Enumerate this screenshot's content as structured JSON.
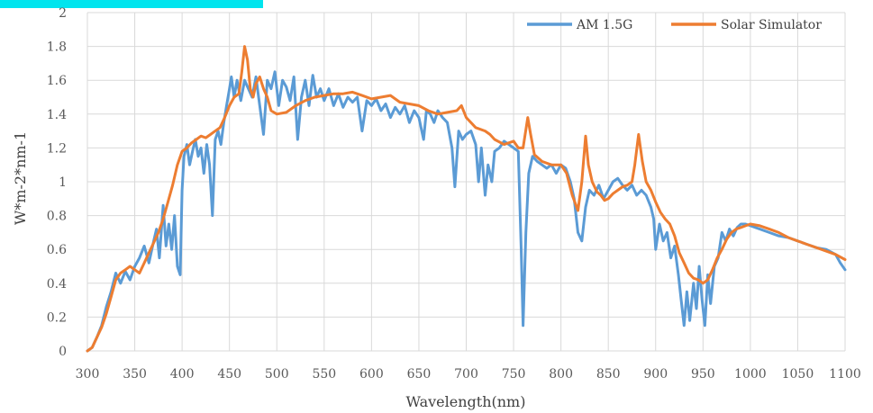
{
  "chart_data": {
    "type": "line",
    "title": "",
    "xlabel": "Wavelength(nm)",
    "ylabel": "W*m-2*nm-1",
    "xlim": [
      300,
      1100
    ],
    "ylim": [
      0,
      2
    ],
    "x_ticks": [
      300,
      350,
      400,
      450,
      500,
      550,
      600,
      650,
      700,
      750,
      800,
      850,
      900,
      950,
      1000,
      1050,
      1100
    ],
    "y_ticks": [
      0,
      0.2,
      0.4,
      0.6,
      0.8,
      1,
      1.2,
      1.4,
      1.6,
      1.8,
      2
    ],
    "y_tick_labels": [
      "0",
      "0.2",
      "0.4",
      "0.6",
      "0.8",
      "1",
      "1.2",
      "1.4",
      "1.6",
      "1.8",
      "2"
    ],
    "grid": true,
    "legend_position": "top-right",
    "series": [
      {
        "name": "AM 1.5G",
        "color": "#5b9bd5",
        "points": [
          [
            300,
            0
          ],
          [
            305,
            0.02
          ],
          [
            310,
            0.08
          ],
          [
            315,
            0.15
          ],
          [
            320,
            0.26
          ],
          [
            325,
            0.35
          ],
          [
            330,
            0.46
          ],
          [
            335,
            0.4
          ],
          [
            340,
            0.47
          ],
          [
            345,
            0.42
          ],
          [
            350,
            0.5
          ],
          [
            355,
            0.55
          ],
          [
            360,
            0.62
          ],
          [
            365,
            0.52
          ],
          [
            370,
            0.65
          ],
          [
            373,
            0.72
          ],
          [
            376,
            0.55
          ],
          [
            380,
            0.86
          ],
          [
            383,
            0.62
          ],
          [
            386,
            0.75
          ],
          [
            389,
            0.6
          ],
          [
            392,
            0.8
          ],
          [
            395,
            0.5
          ],
          [
            398,
            0.45
          ],
          [
            400,
            0.95
          ],
          [
            402,
            1.15
          ],
          [
            405,
            1.22
          ],
          [
            408,
            1.1
          ],
          [
            411,
            1.18
          ],
          [
            414,
            1.25
          ],
          [
            417,
            1.15
          ],
          [
            420,
            1.2
          ],
          [
            423,
            1.05
          ],
          [
            426,
            1.22
          ],
          [
            429,
            1.1
          ],
          [
            432,
            0.8
          ],
          [
            435,
            1.25
          ],
          [
            438,
            1.3
          ],
          [
            441,
            1.22
          ],
          [
            444,
            1.35
          ],
          [
            447,
            1.45
          ],
          [
            450,
            1.55
          ],
          [
            452,
            1.62
          ],
          [
            455,
            1.5
          ],
          [
            458,
            1.6
          ],
          [
            462,
            1.48
          ],
          [
            466,
            1.6
          ],
          [
            470,
            1.55
          ],
          [
            474,
            1.5
          ],
          [
            478,
            1.62
          ],
          [
            482,
            1.45
          ],
          [
            486,
            1.28
          ],
          [
            490,
            1.6
          ],
          [
            494,
            1.55
          ],
          [
            498,
            1.65
          ],
          [
            502,
            1.45
          ],
          [
            506,
            1.6
          ],
          [
            510,
            1.56
          ],
          [
            514,
            1.48
          ],
          [
            518,
            1.62
          ],
          [
            522,
            1.25
          ],
          [
            526,
            1.5
          ],
          [
            530,
            1.6
          ],
          [
            534,
            1.45
          ],
          [
            538,
            1.63
          ],
          [
            542,
            1.5
          ],
          [
            546,
            1.55
          ],
          [
            550,
            1.48
          ],
          [
            555,
            1.55
          ],
          [
            560,
            1.45
          ],
          [
            565,
            1.52
          ],
          [
            570,
            1.44
          ],
          [
            575,
            1.5
          ],
          [
            580,
            1.47
          ],
          [
            585,
            1.5
          ],
          [
            590,
            1.3
          ],
          [
            595,
            1.48
          ],
          [
            600,
            1.45
          ],
          [
            605,
            1.49
          ],
          [
            610,
            1.42
          ],
          [
            615,
            1.46
          ],
          [
            620,
            1.38
          ],
          [
            625,
            1.44
          ],
          [
            630,
            1.4
          ],
          [
            635,
            1.45
          ],
          [
            640,
            1.35
          ],
          [
            645,
            1.42
          ],
          [
            650,
            1.38
          ],
          [
            655,
            1.25
          ],
          [
            658,
            1.42
          ],
          [
            662,
            1.4
          ],
          [
            666,
            1.35
          ],
          [
            670,
            1.42
          ],
          [
            675,
            1.38
          ],
          [
            680,
            1.35
          ],
          [
            685,
            1.2
          ],
          [
            688,
            0.97
          ],
          [
            692,
            1.3
          ],
          [
            696,
            1.25
          ],
          [
            700,
            1.28
          ],
          [
            705,
            1.3
          ],
          [
            710,
            1.22
          ],
          [
            713,
            1.0
          ],
          [
            716,
            1.2
          ],
          [
            720,
            0.92
          ],
          [
            723,
            1.1
          ],
          [
            727,
            1.0
          ],
          [
            730,
            1.18
          ],
          [
            735,
            1.2
          ],
          [
            740,
            1.24
          ],
          [
            745,
            1.22
          ],
          [
            750,
            1.2
          ],
          [
            755,
            1.18
          ],
          [
            758,
            0.6
          ],
          [
            760,
            0.15
          ],
          [
            763,
            0.7
          ],
          [
            766,
            1.05
          ],
          [
            770,
            1.15
          ],
          [
            775,
            1.12
          ],
          [
            780,
            1.1
          ],
          [
            785,
            1.08
          ],
          [
            790,
            1.1
          ],
          [
            795,
            1.05
          ],
          [
            800,
            1.1
          ],
          [
            805,
            1.08
          ],
          [
            810,
            1.0
          ],
          [
            814,
            0.9
          ],
          [
            818,
            0.7
          ],
          [
            822,
            0.65
          ],
          [
            826,
            0.85
          ],
          [
            830,
            0.95
          ],
          [
            835,
            0.92
          ],
          [
            840,
            0.98
          ],
          [
            845,
            0.9
          ],
          [
            850,
            0.95
          ],
          [
            855,
            1.0
          ],
          [
            860,
            1.02
          ],
          [
            865,
            0.98
          ],
          [
            870,
            0.95
          ],
          [
            875,
            0.98
          ],
          [
            880,
            0.92
          ],
          [
            885,
            0.95
          ],
          [
            890,
            0.92
          ],
          [
            895,
            0.85
          ],
          [
            898,
            0.78
          ],
          [
            900,
            0.6
          ],
          [
            904,
            0.75
          ],
          [
            908,
            0.65
          ],
          [
            912,
            0.7
          ],
          [
            916,
            0.55
          ],
          [
            920,
            0.62
          ],
          [
            924,
            0.45
          ],
          [
            927,
            0.3
          ],
          [
            930,
            0.15
          ],
          [
            933,
            0.35
          ],
          [
            936,
            0.18
          ],
          [
            940,
            0.4
          ],
          [
            943,
            0.25
          ],
          [
            946,
            0.5
          ],
          [
            949,
            0.3
          ],
          [
            952,
            0.15
          ],
          [
            955,
            0.45
          ],
          [
            958,
            0.28
          ],
          [
            962,
            0.5
          ],
          [
            966,
            0.55
          ],
          [
            970,
            0.7
          ],
          [
            974,
            0.65
          ],
          [
            978,
            0.72
          ],
          [
            982,
            0.68
          ],
          [
            986,
            0.73
          ],
          [
            990,
            0.75
          ],
          [
            995,
            0.75
          ],
          [
            1000,
            0.74
          ],
          [
            1010,
            0.72
          ],
          [
            1020,
            0.7
          ],
          [
            1030,
            0.68
          ],
          [
            1040,
            0.67
          ],
          [
            1050,
            0.65
          ],
          [
            1060,
            0.63
          ],
          [
            1070,
            0.61
          ],
          [
            1080,
            0.6
          ],
          [
            1090,
            0.57
          ],
          [
            1095,
            0.52
          ],
          [
            1100,
            0.48
          ]
        ]
      },
      {
        "name": "Solar Simulator",
        "color": "#ed7d31",
        "points": [
          [
            300,
            0
          ],
          [
            305,
            0.02
          ],
          [
            310,
            0.08
          ],
          [
            315,
            0.14
          ],
          [
            320,
            0.22
          ],
          [
            325,
            0.32
          ],
          [
            330,
            0.42
          ],
          [
            335,
            0.46
          ],
          [
            340,
            0.48
          ],
          [
            345,
            0.5
          ],
          [
            350,
            0.48
          ],
          [
            355,
            0.46
          ],
          [
            360,
            0.52
          ],
          [
            365,
            0.58
          ],
          [
            370,
            0.64
          ],
          [
            375,
            0.7
          ],
          [
            380,
            0.78
          ],
          [
            385,
            0.88
          ],
          [
            390,
            0.98
          ],
          [
            395,
            1.1
          ],
          [
            400,
            1.18
          ],
          [
            405,
            1.2
          ],
          [
            410,
            1.23
          ],
          [
            415,
            1.25
          ],
          [
            420,
            1.27
          ],
          [
            425,
            1.26
          ],
          [
            430,
            1.28
          ],
          [
            435,
            1.3
          ],
          [
            440,
            1.32
          ],
          [
            445,
            1.38
          ],
          [
            450,
            1.45
          ],
          [
            455,
            1.5
          ],
          [
            460,
            1.52
          ],
          [
            463,
            1.65
          ],
          [
            466,
            1.8
          ],
          [
            469,
            1.72
          ],
          [
            472,
            1.55
          ],
          [
            475,
            1.5
          ],
          [
            478,
            1.58
          ],
          [
            482,
            1.62
          ],
          [
            486,
            1.55
          ],
          [
            490,
            1.5
          ],
          [
            494,
            1.42
          ],
          [
            500,
            1.4
          ],
          [
            510,
            1.41
          ],
          [
            520,
            1.45
          ],
          [
            530,
            1.48
          ],
          [
            540,
            1.5
          ],
          [
            550,
            1.51
          ],
          [
            560,
            1.52
          ],
          [
            570,
            1.52
          ],
          [
            580,
            1.53
          ],
          [
            590,
            1.51
          ],
          [
            600,
            1.49
          ],
          [
            610,
            1.5
          ],
          [
            620,
            1.51
          ],
          [
            630,
            1.47
          ],
          [
            640,
            1.46
          ],
          [
            650,
            1.45
          ],
          [
            660,
            1.42
          ],
          [
            670,
            1.4
          ],
          [
            680,
            1.41
          ],
          [
            690,
            1.42
          ],
          [
            695,
            1.45
          ],
          [
            700,
            1.38
          ],
          [
            710,
            1.32
          ],
          [
            720,
            1.3
          ],
          [
            725,
            1.28
          ],
          [
            730,
            1.25
          ],
          [
            740,
            1.22
          ],
          [
            750,
            1.24
          ],
          [
            755,
            1.2
          ],
          [
            760,
            1.2
          ],
          [
            765,
            1.38
          ],
          [
            768,
            1.28
          ],
          [
            772,
            1.16
          ],
          [
            780,
            1.12
          ],
          [
            790,
            1.1
          ],
          [
            800,
            1.1
          ],
          [
            806,
            1.05
          ],
          [
            812,
            0.92
          ],
          [
            818,
            0.83
          ],
          [
            822,
            1.0
          ],
          [
            826,
            1.27
          ],
          [
            829,
            1.1
          ],
          [
            833,
            1.0
          ],
          [
            838,
            0.94
          ],
          [
            842,
            0.92
          ],
          [
            846,
            0.89
          ],
          [
            850,
            0.9
          ],
          [
            855,
            0.93
          ],
          [
            860,
            0.95
          ],
          [
            865,
            0.97
          ],
          [
            870,
            0.98
          ],
          [
            875,
            1.0
          ],
          [
            878,
            1.1
          ],
          [
            882,
            1.28
          ],
          [
            886,
            1.12
          ],
          [
            890,
            1.0
          ],
          [
            895,
            0.95
          ],
          [
            900,
            0.88
          ],
          [
            905,
            0.82
          ],
          [
            910,
            0.78
          ],
          [
            915,
            0.75
          ],
          [
            920,
            0.68
          ],
          [
            925,
            0.58
          ],
          [
            930,
            0.52
          ],
          [
            935,
            0.46
          ],
          [
            940,
            0.43
          ],
          [
            945,
            0.42
          ],
          [
            950,
            0.4
          ],
          [
            955,
            0.42
          ],
          [
            960,
            0.48
          ],
          [
            965,
            0.55
          ],
          [
            970,
            0.6
          ],
          [
            975,
            0.66
          ],
          [
            980,
            0.7
          ],
          [
            985,
            0.72
          ],
          [
            990,
            0.73
          ],
          [
            995,
            0.74
          ],
          [
            1000,
            0.75
          ],
          [
            1010,
            0.74
          ],
          [
            1020,
            0.72
          ],
          [
            1030,
            0.7
          ],
          [
            1040,
            0.67
          ],
          [
            1050,
            0.65
          ],
          [
            1060,
            0.63
          ],
          [
            1070,
            0.61
          ],
          [
            1080,
            0.59
          ],
          [
            1090,
            0.57
          ],
          [
            1100,
            0.54
          ]
        ]
      }
    ]
  },
  "colors": {
    "highlight_bar": "#00e5ee",
    "grid": "#d9d9d9"
  }
}
